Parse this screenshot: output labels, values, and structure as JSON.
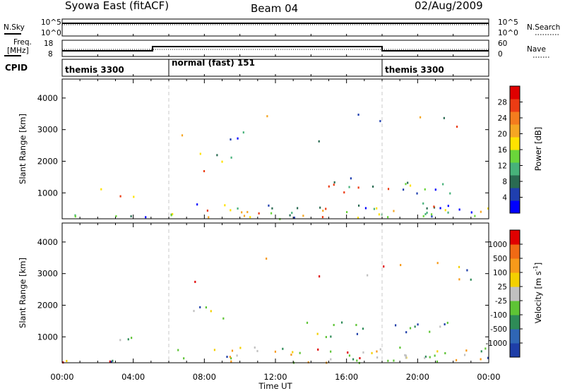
{
  "header": {
    "radar": "Syowa East (fitACF)",
    "beam": "Beam 04",
    "date": "02/Aug/2009"
  },
  "sky_noise_panel": {
    "left_label": "N.Sky",
    "right_label": "N.Search",
    "left_ticks": [
      "10^5",
      "10^0"
    ],
    "right_ticks": [
      "10^5",
      "10^0"
    ]
  },
  "freq_panel": {
    "left_label_line1": "Freq.",
    "left_label_line2": "[MHz]",
    "right_label": "Nave",
    "left_ticks": [
      "18",
      "8"
    ],
    "right_ticks": [
      "60",
      "0"
    ]
  },
  "cpid_panel": {
    "label": "CPID",
    "segments": [
      {
        "name": "themis 3300",
        "start_hour": 0,
        "end_hour": 6
      },
      {
        "name": "normal (fast) 151",
        "start_hour": 6,
        "end_hour": 18
      },
      {
        "name": "themis 3300",
        "start_hour": 18,
        "end_hour": 24
      }
    ]
  },
  "x_axis": {
    "title": "Time UT",
    "ticks": [
      "00:00",
      "04:00",
      "08:00",
      "12:00",
      "16:00",
      "20:00",
      "00:00"
    ]
  },
  "chart_data": [
    {
      "type": "heatmap",
      "panel": "power",
      "xlabel": "Time UT",
      "ylabel": "Slant Range [km]",
      "xlim": [
        0,
        24
      ],
      "ylim": [
        180,
        4600
      ],
      "y_ticks": [
        "1000",
        "2000",
        "3000",
        "4000"
      ],
      "colorbar": {
        "label": "Power [dB]",
        "ticks": [
          "4",
          "8",
          "12",
          "16",
          "20",
          "24",
          "28"
        ],
        "colors": [
          "#0000ff",
          "#1f3faf",
          "#2a6b52",
          "#47b27a",
          "#6ad53a",
          "#ffe200",
          "#f5a623",
          "#f47c1e",
          "#ec3c14",
          "#e00000"
        ]
      }
    },
    {
      "type": "heatmap",
      "panel": "velocity",
      "xlabel": "Time UT",
      "ylabel": "Slant Range [km]",
      "xlim": [
        0,
        24
      ],
      "ylim": [
        180,
        4600
      ],
      "y_ticks": [
        "1000",
        "2000",
        "3000",
        "4000"
      ],
      "colorbar": {
        "label": "Velocity [m s^-1]",
        "ticks": [
          "1000",
          "500",
          "100",
          "25",
          "-25",
          "-100",
          "-500",
          "-1000"
        ],
        "colors": [
          "#1e3ea8",
          "#2f66b5",
          "#2e8b57",
          "#5ec435",
          "#c0c0c0",
          "#f4d000",
          "#f79a1a",
          "#f06a14",
          "#e00000"
        ]
      }
    }
  ]
}
